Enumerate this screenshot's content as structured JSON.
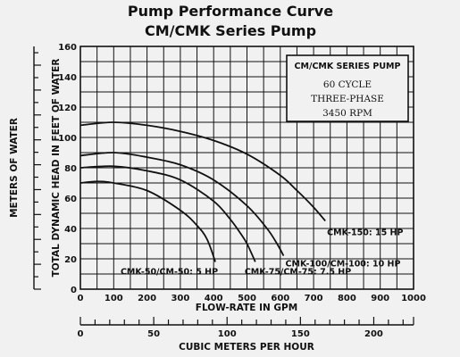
{
  "chart_data": {
    "type": "line",
    "title": "Pump Performance Curve",
    "subtitle": "CM/CMK Series Pump",
    "xlabel": "FLOW-RATE IN GPM",
    "ylabel": "TOTAL DYNAMIC HEAD IN FEET OF WATER",
    "secondary_ylabel": "METERS OF WATER",
    "secondary_xlabel": "CUBIC METERS PER HOUR",
    "xlim": [
      0,
      1000
    ],
    "ylim": [
      0,
      160
    ],
    "x_ticks": [
      "0",
      "100",
      "200",
      "300",
      "400",
      "500",
      "600",
      "700",
      "800",
      "900",
      "1000"
    ],
    "y_ticks": [
      "0",
      "20",
      "40",
      "60",
      "80",
      "100",
      "120",
      "140",
      "160"
    ],
    "secondary_x_lim": [
      0,
      227.12
    ],
    "secondary_x_ticks": [
      "0",
      "50",
      "100",
      "150",
      "200"
    ],
    "grid": true,
    "info_box": {
      "heading": "CM/CMK SERIES PUMP",
      "lines": [
        "60 CYCLE",
        "THREE-PHASE",
        "3450 RPM"
      ]
    },
    "series": [
      {
        "name": "CMK-150: 15 HP",
        "x": [
          0,
          100,
          200,
          300,
          400,
          500,
          600,
          650,
          700,
          735
        ],
        "y": [
          108,
          110,
          108,
          104,
          98,
          89,
          75,
          65,
          54,
          45
        ]
      },
      {
        "name": "CMK-100/CM-100: 10 HP",
        "x": [
          0,
          100,
          200,
          300,
          400,
          500,
          560,
          590,
          610
        ],
        "y": [
          88,
          90,
          87,
          82,
          72,
          55,
          40,
          30,
          22
        ]
      },
      {
        "name": "CMK-75/CM-75: 7.5 HP",
        "x": [
          0,
          100,
          200,
          300,
          400,
          450,
          480,
          500,
          525
        ],
        "y": [
          80,
          81,
          78,
          72,
          58,
          46,
          37,
          30,
          18
        ]
      },
      {
        "name": "CMK-50/CM-50: 5 HP",
        "x": [
          0,
          50,
          100,
          200,
          300,
          350,
          380,
          405
        ],
        "y": [
          70,
          71,
          70,
          65,
          52,
          42,
          33,
          18
        ]
      }
    ]
  }
}
